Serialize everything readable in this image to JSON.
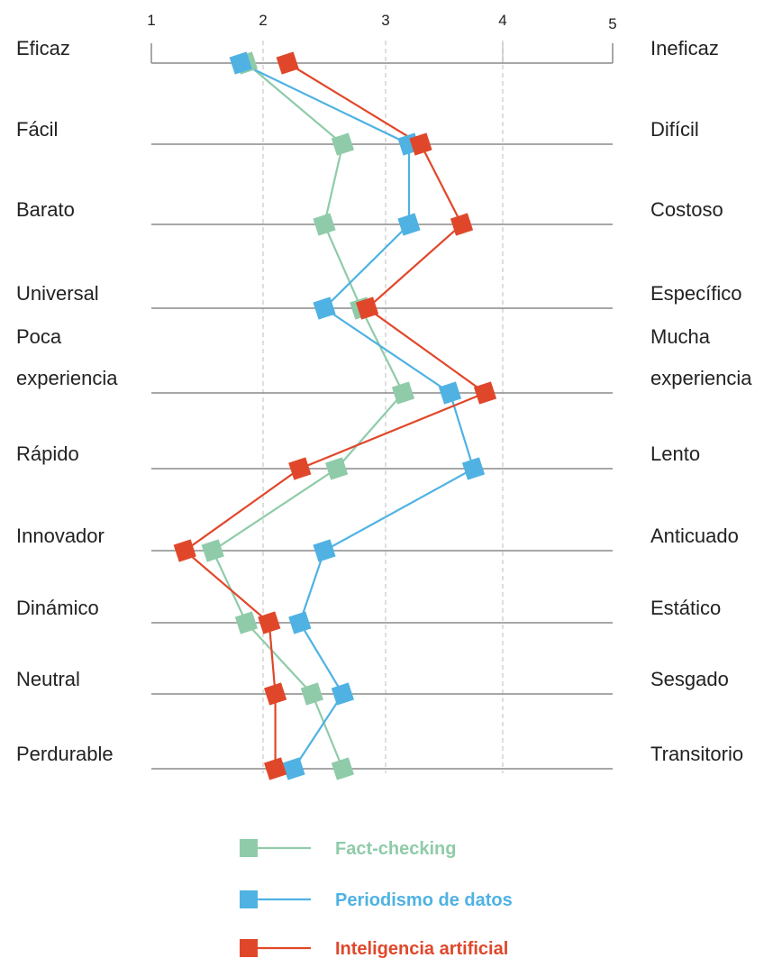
{
  "chart_data": {
    "type": "line",
    "title": "",
    "xlim": [
      1,
      5
    ],
    "x_ticks": [
      "1",
      "2",
      "3",
      "4",
      "5"
    ],
    "grid": true,
    "legend_position": "bottom",
    "pairs": [
      {
        "left": [
          "Eficaz"
        ],
        "right": [
          "Ineficaz"
        ]
      },
      {
        "left": [
          "Fácil"
        ],
        "right": [
          "Difícil"
        ]
      },
      {
        "left": [
          "Barato"
        ],
        "right": [
          "Costoso"
        ]
      },
      {
        "left": [
          "Universal"
        ],
        "right": [
          "Específico"
        ]
      },
      {
        "left": [
          "Poca",
          "experiencia"
        ],
        "right": [
          "Mucha",
          "experiencia"
        ]
      },
      {
        "left": [
          "Rápido"
        ],
        "right": [
          "Lento"
        ]
      },
      {
        "left": [
          "Innovador"
        ],
        "right": [
          "Anticuado"
        ]
      },
      {
        "left": [
          "Dinámico"
        ],
        "right": [
          "Estático"
        ]
      },
      {
        "left": [
          "Neutral"
        ],
        "right": [
          "Sesgado"
        ]
      },
      {
        "left": [
          "Perdurable"
        ],
        "right": [
          "Transitorio"
        ]
      }
    ],
    "series": [
      {
        "name": "Fact-checking",
        "color": "#8fcba9",
        "values": [
          1.85,
          2.65,
          2.5,
          2.8,
          3.15,
          2.6,
          1.55,
          1.85,
          2.4,
          2.65
        ]
      },
      {
        "name": "Periodismo de datos",
        "color": "#4fb2e3",
        "values": [
          1.8,
          3.2,
          3.2,
          2.5,
          3.55,
          3.75,
          2.5,
          2.3,
          2.65,
          2.25
        ]
      },
      {
        "name": "Inteligencia artificial",
        "color": "#e0472a",
        "values": [
          2.2,
          3.3,
          3.65,
          2.85,
          3.85,
          2.3,
          1.3,
          2.05,
          2.1,
          2.1
        ]
      }
    ]
  }
}
